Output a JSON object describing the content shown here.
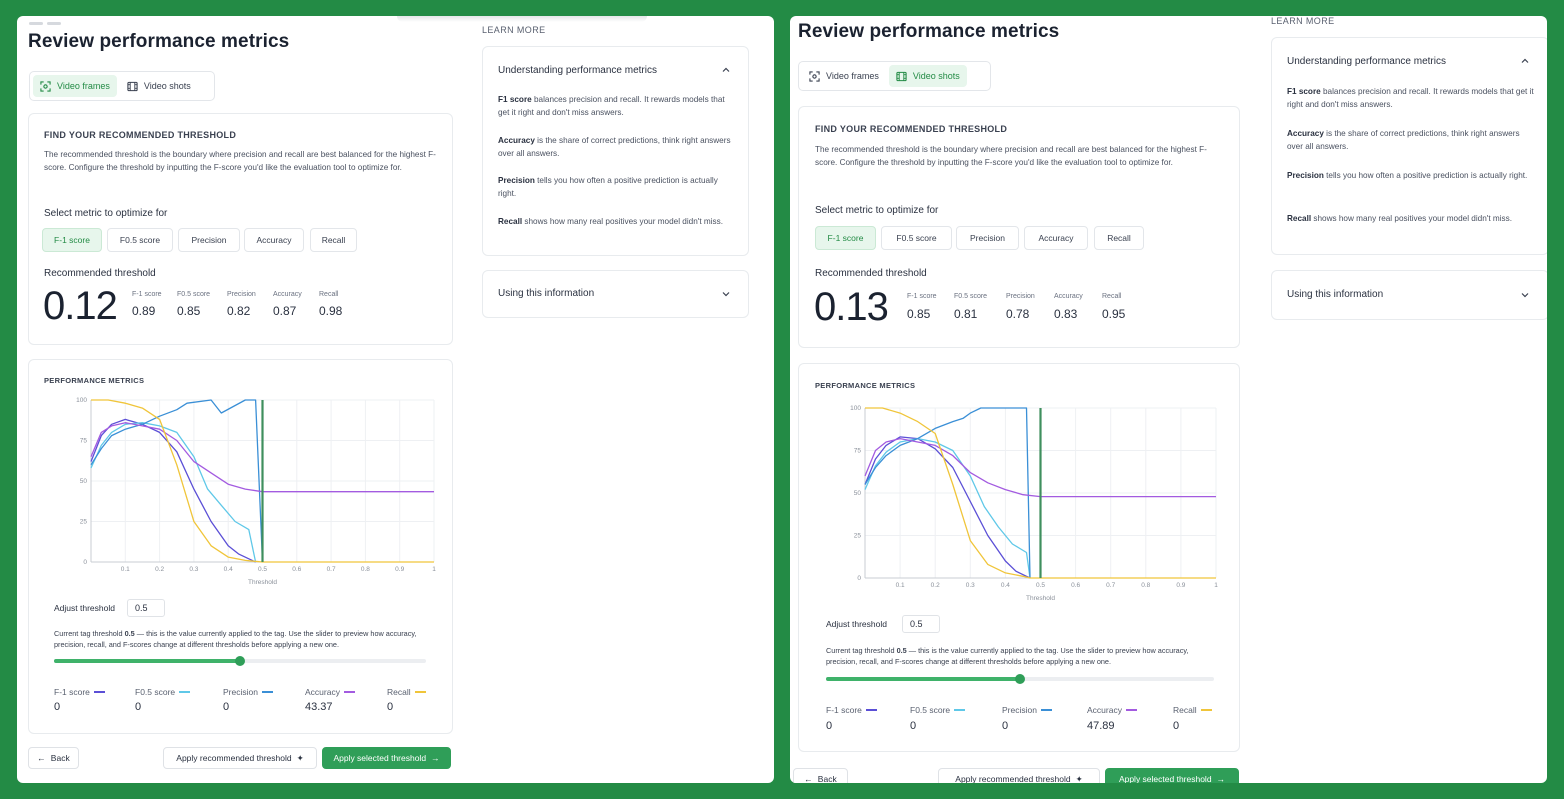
{
  "colors": {
    "background": "#238b45",
    "accent": "#2f9e58",
    "f1": "#5b4fd6",
    "f05": "#5fc8e8",
    "precision": "#3a8fd6",
    "accuracy": "#a35be0",
    "recall": "#f0c53a"
  },
  "panels": [
    {
      "title": "Review performance metrics",
      "learn_more": "LEARN MORE",
      "tabs": [
        {
          "label": "Video frames",
          "icon": "focus-frame-icon",
          "active": true
        },
        {
          "label": "Video shots",
          "icon": "film-icon",
          "active": false
        }
      ],
      "threshold_card": {
        "heading": "FIND YOUR RECOMMENDED THRESHOLD",
        "description": "The recommended threshold is the boundary where precision and recall are best balanced for the highest F-score. Configure the threshold by inputting the F-score you'd like the evaluation tool to optimize for.",
        "select_label": "Select metric to optimize for",
        "metrics": [
          {
            "label": "F-1 score",
            "active": true
          },
          {
            "label": "F0.5 score",
            "active": false
          },
          {
            "label": "Precision",
            "active": false
          },
          {
            "label": "Accuracy",
            "active": false
          },
          {
            "label": "Recall",
            "active": false
          }
        ],
        "recommended_label": "Recommended threshold",
        "recommended_value": "0.12",
        "stats": [
          {
            "label": "F-1 score",
            "value": "0.89"
          },
          {
            "label": "F0.5 score",
            "value": "0.85"
          },
          {
            "label": "Precision",
            "value": "0.82"
          },
          {
            "label": "Accuracy",
            "value": "0.87"
          },
          {
            "label": "Recall",
            "value": "0.98"
          }
        ]
      },
      "perf_card": {
        "heading": "PERFORMANCE METRICS",
        "x_label": "Threshold",
        "adjust_label": "Adjust threshold",
        "threshold_value": "0.5",
        "note_prefix": "Current tag threshold ",
        "note_bold": "0.5",
        "note_suffix": " — this is the value currently applied to the tag. Use the slider to preview how accuracy, precision, recall, and F-scores change at different thresholds before applying a new one.",
        "slider_fraction": 0.5,
        "legend": [
          {
            "label": "F-1 score",
            "value": "0",
            "color_key": "f1"
          },
          {
            "label": "F0.5 score",
            "value": "0",
            "color_key": "f05"
          },
          {
            "label": "Precision",
            "value": "0",
            "color_key": "precision"
          },
          {
            "label": "Accuracy",
            "value": "43.37",
            "color_key": "accuracy"
          },
          {
            "label": "Recall",
            "value": "0",
            "color_key": "recall"
          }
        ]
      },
      "accordion": {
        "title1": "Understanding performance metrics",
        "items": [
          {
            "term": "F1 score",
            "text": " balances precision and recall. It rewards models that get it right and don't miss answers."
          },
          {
            "term": "Accuracy",
            "text": " is the share of correct predictions, think right answers over all answers."
          },
          {
            "term": "Precision",
            "text": " tells you how often a positive prediction is actually right."
          },
          {
            "term": "Recall",
            "text": " shows how many real positives your model didn't miss."
          }
        ],
        "title2": "Using this information"
      },
      "footer": {
        "back": "Back",
        "apply_recommended": "Apply recommended threshold",
        "apply_selected": "Apply selected threshold"
      }
    },
    {
      "title": "Review performance metrics",
      "learn_more": "LEARN MORE",
      "tabs": [
        {
          "label": "Video frames",
          "icon": "focus-frame-icon",
          "active": false
        },
        {
          "label": "Video shots",
          "icon": "film-icon",
          "active": true
        }
      ],
      "threshold_card": {
        "heading": "FIND YOUR RECOMMENDED THRESHOLD",
        "description": "The recommended threshold is the boundary where precision and recall are best balanced for the highest F-score. Configure the threshold by inputting the F-score you'd like the evaluation tool to optimize for.",
        "select_label": "Select metric to optimize for",
        "metrics": [
          {
            "label": "F-1 score",
            "active": true
          },
          {
            "label": "F0.5 score",
            "active": false
          },
          {
            "label": "Precision",
            "active": false
          },
          {
            "label": "Accuracy",
            "active": false
          },
          {
            "label": "Recall",
            "active": false
          }
        ],
        "recommended_label": "Recommended threshold",
        "recommended_value": "0.13",
        "stats": [
          {
            "label": "F-1 score",
            "value": "0.85"
          },
          {
            "label": "F0.5 score",
            "value": "0.81"
          },
          {
            "label": "Precision",
            "value": "0.78"
          },
          {
            "label": "Accuracy",
            "value": "0.83"
          },
          {
            "label": "Recall",
            "value": "0.95"
          }
        ]
      },
      "perf_card": {
        "heading": "PERFORMANCE METRICS",
        "x_label": "Threshold",
        "adjust_label": "Adjust threshold",
        "threshold_value": "0.5",
        "note_prefix": "Current tag threshold ",
        "note_bold": "0.5",
        "note_suffix": " — this is the value currently applied to the tag. Use the slider to preview how accuracy, precision, recall, and F-scores change at different thresholds before applying a new one.",
        "slider_fraction": 0.5,
        "legend": [
          {
            "label": "F-1 score",
            "value": "0",
            "color_key": "f1"
          },
          {
            "label": "F0.5 score",
            "value": "0",
            "color_key": "f05"
          },
          {
            "label": "Precision",
            "value": "0",
            "color_key": "precision"
          },
          {
            "label": "Accuracy",
            "value": "47.89",
            "color_key": "accuracy"
          },
          {
            "label": "Recall",
            "value": "0",
            "color_key": "recall"
          }
        ]
      },
      "accordion": {
        "title1": "Understanding performance metrics",
        "items": [
          {
            "term": "F1 score",
            "text": " balances precision and recall. It rewards models that get it right and don't miss answers."
          },
          {
            "term": "Accuracy",
            "text": " is the share of correct predictions, think right answers over all answers."
          },
          {
            "term": "Precision",
            "text": " tells you how often a positive prediction is actually right."
          },
          {
            "term": "Recall",
            "text": " shows how many real positives your model didn't miss."
          }
        ],
        "title2": "Using this information"
      },
      "footer": {
        "back": "Back",
        "apply_recommended": "Apply recommended threshold",
        "apply_selected": "Apply selected threshold"
      }
    }
  ],
  "chart_data": [
    {
      "type": "line",
      "title": "PERFORMANCE METRICS",
      "xlabel": "Threshold",
      "ylabel": "",
      "xlim": [
        0,
        1
      ],
      "ylim": [
        0,
        100
      ],
      "x_ticks": [
        "0.1",
        "0.2",
        "0.3",
        "0.4",
        "0.5",
        "0.6",
        "0.7",
        "0.8",
        "0.9",
        "1"
      ],
      "y_ticks": [
        "0",
        "25",
        "50",
        "75",
        "100"
      ],
      "threshold_marker": 0.5,
      "series": [
        {
          "name": "F-1 score",
          "color_key": "f1",
          "x": [
            0,
            0.03,
            0.06,
            0.1,
            0.15,
            0.2,
            0.25,
            0.3,
            0.35,
            0.4,
            0.43,
            0.46,
            0.48
          ],
          "y": [
            62,
            78,
            85,
            88,
            85,
            80,
            68,
            45,
            25,
            10,
            5,
            2,
            0
          ]
        },
        {
          "name": "F0.5 score",
          "color_key": "f05",
          "x": [
            0,
            0.03,
            0.06,
            0.1,
            0.15,
            0.2,
            0.25,
            0.3,
            0.34,
            0.38,
            0.42,
            0.46,
            0.48
          ],
          "y": [
            58,
            72,
            80,
            85,
            86,
            84,
            80,
            65,
            45,
            35,
            25,
            20,
            0
          ]
        },
        {
          "name": "Precision",
          "color_key": "precision",
          "x": [
            0,
            0.03,
            0.06,
            0.1,
            0.15,
            0.2,
            0.25,
            0.28,
            0.35,
            0.38,
            0.45,
            0.47,
            0.48,
            0.5
          ],
          "y": [
            60,
            70,
            78,
            82,
            85,
            90,
            94,
            98,
            100,
            92,
            100,
            100,
            100,
            0
          ]
        },
        {
          "name": "Accuracy",
          "color_key": "accuracy",
          "x": [
            0,
            0.03,
            0.06,
            0.1,
            0.15,
            0.2,
            0.25,
            0.3,
            0.35,
            0.4,
            0.45,
            0.5,
            0.6,
            1
          ],
          "y": [
            65,
            80,
            84,
            86,
            84,
            82,
            75,
            62,
            55,
            48,
            45,
            43.37,
            43.37,
            43.37
          ]
        },
        {
          "name": "Recall",
          "color_key": "recall",
          "x": [
            0,
            0.05,
            0.1,
            0.15,
            0.2,
            0.25,
            0.3,
            0.35,
            0.4,
            0.45,
            0.5,
            1
          ],
          "y": [
            100,
            100,
            98,
            95,
            88,
            60,
            25,
            10,
            3,
            1,
            0,
            0
          ]
        }
      ]
    },
    {
      "type": "line",
      "title": "PERFORMANCE METRICS",
      "xlabel": "Threshold",
      "ylabel": "",
      "xlim": [
        0,
        1
      ],
      "ylim": [
        0,
        100
      ],
      "x_ticks": [
        "0.1",
        "0.2",
        "0.3",
        "0.4",
        "0.5",
        "0.6",
        "0.7",
        "0.8",
        "0.9",
        "1"
      ],
      "y_ticks": [
        "0",
        "25",
        "50",
        "75",
        "100"
      ],
      "threshold_marker": 0.5,
      "series": [
        {
          "name": "F-1 score",
          "color_key": "f1",
          "x": [
            0,
            0.03,
            0.06,
            0.1,
            0.15,
            0.2,
            0.25,
            0.3,
            0.35,
            0.4,
            0.43,
            0.46,
            0.47
          ],
          "y": [
            55,
            70,
            78,
            83,
            82,
            76,
            65,
            45,
            25,
            10,
            4,
            1,
            0
          ]
        },
        {
          "name": "F0.5 score",
          "color_key": "f05",
          "x": [
            0,
            0.03,
            0.06,
            0.1,
            0.15,
            0.2,
            0.25,
            0.3,
            0.34,
            0.38,
            0.42,
            0.46,
            0.47
          ],
          "y": [
            52,
            66,
            74,
            80,
            82,
            80,
            75,
            60,
            42,
            30,
            20,
            15,
            0
          ]
        },
        {
          "name": "Precision",
          "color_key": "precision",
          "x": [
            0,
            0.03,
            0.06,
            0.1,
            0.15,
            0.2,
            0.25,
            0.28,
            0.3,
            0.33,
            0.35,
            0.4,
            0.45,
            0.46,
            0.47
          ],
          "y": [
            55,
            65,
            72,
            78,
            82,
            88,
            92,
            94,
            97,
            100,
            100,
            100,
            100,
            100,
            0
          ]
        },
        {
          "name": "Accuracy",
          "color_key": "accuracy",
          "x": [
            0,
            0.03,
            0.06,
            0.1,
            0.15,
            0.2,
            0.25,
            0.3,
            0.35,
            0.4,
            0.45,
            0.5,
            0.6,
            1
          ],
          "y": [
            60,
            75,
            80,
            82,
            80,
            78,
            72,
            62,
            56,
            52,
            49,
            47.89,
            47.89,
            47.89
          ]
        },
        {
          "name": "Recall",
          "color_key": "recall",
          "x": [
            0,
            0.05,
            0.1,
            0.15,
            0.2,
            0.25,
            0.3,
            0.35,
            0.4,
            0.45,
            0.47,
            1
          ],
          "y": [
            100,
            100,
            97,
            92,
            85,
            55,
            22,
            8,
            3,
            1,
            0,
            0
          ]
        }
      ]
    }
  ]
}
